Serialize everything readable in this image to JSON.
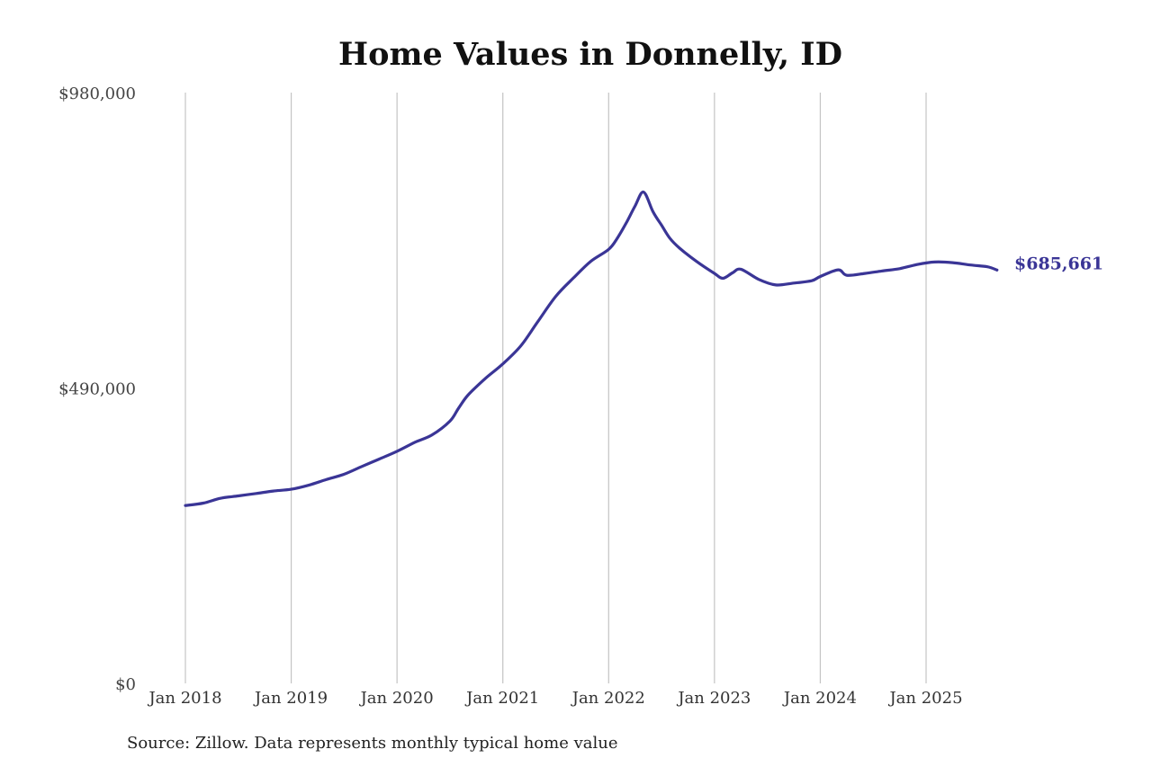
{
  "chart_data": {
    "type": "line",
    "title": "Home Values in Donnelly, ID",
    "xlabel": "",
    "ylabel": "",
    "ylim": [
      0,
      980000
    ],
    "y_ticks": [
      {
        "value": 0,
        "label": "$0"
      },
      {
        "value": 490000,
        "label": "$490,000"
      },
      {
        "value": 980000,
        "label": "$980,000"
      }
    ],
    "x_ticks": [
      {
        "value": 2018,
        "label": "Jan 2018"
      },
      {
        "value": 2019,
        "label": "Jan 2019"
      },
      {
        "value": 2020,
        "label": "Jan 2020"
      },
      {
        "value": 2021,
        "label": "Jan 2021"
      },
      {
        "value": 2022,
        "label": "Jan 2022"
      },
      {
        "value": 2023,
        "label": "Jan 2023"
      },
      {
        "value": 2024,
        "label": "Jan 2024"
      },
      {
        "value": 2025,
        "label": "Jan 2025"
      }
    ],
    "grid": "vertical",
    "series": [
      {
        "color": "#3a3596",
        "end_label": "$685,661",
        "x": [
          2018.0,
          2018.17,
          2018.33,
          2018.5,
          2018.67,
          2018.83,
          2019.0,
          2019.17,
          2019.33,
          2019.5,
          2019.67,
          2019.83,
          2020.0,
          2020.17,
          2020.33,
          2020.5,
          2020.58,
          2020.67,
          2020.83,
          2021.0,
          2021.17,
          2021.33,
          2021.5,
          2021.67,
          2021.83,
          2022.0,
          2022.08,
          2022.17,
          2022.25,
          2022.33,
          2022.42,
          2022.5,
          2022.58,
          2022.67,
          2022.83,
          2023.0,
          2023.08,
          2023.17,
          2023.25,
          2023.42,
          2023.58,
          2023.75,
          2023.92,
          2024.0,
          2024.17,
          2024.25,
          2024.42,
          2024.58,
          2024.75,
          2024.92,
          2025.08,
          2025.25,
          2025.42,
          2025.58,
          2025.67
        ],
        "values": [
          295000,
          299000,
          307000,
          311000,
          315000,
          319000,
          322000,
          329000,
          338000,
          347000,
          360000,
          372000,
          385000,
          400000,
          412000,
          435000,
          456000,
          478000,
          505000,
          530000,
          560000,
          600000,
          642000,
          673000,
          700000,
          720000,
          738000,
          765000,
          792000,
          815000,
          782000,
          760000,
          738000,
          722000,
          700000,
          680000,
          672000,
          681000,
          687000,
          670000,
          661000,
          664000,
          668000,
          675000,
          686000,
          677000,
          680000,
          684000,
          688000,
          695000,
          699000,
          698000,
          694000,
          691000,
          685661
        ]
      }
    ]
  },
  "source_note": "Source: Zillow. Data represents monthly typical home value"
}
